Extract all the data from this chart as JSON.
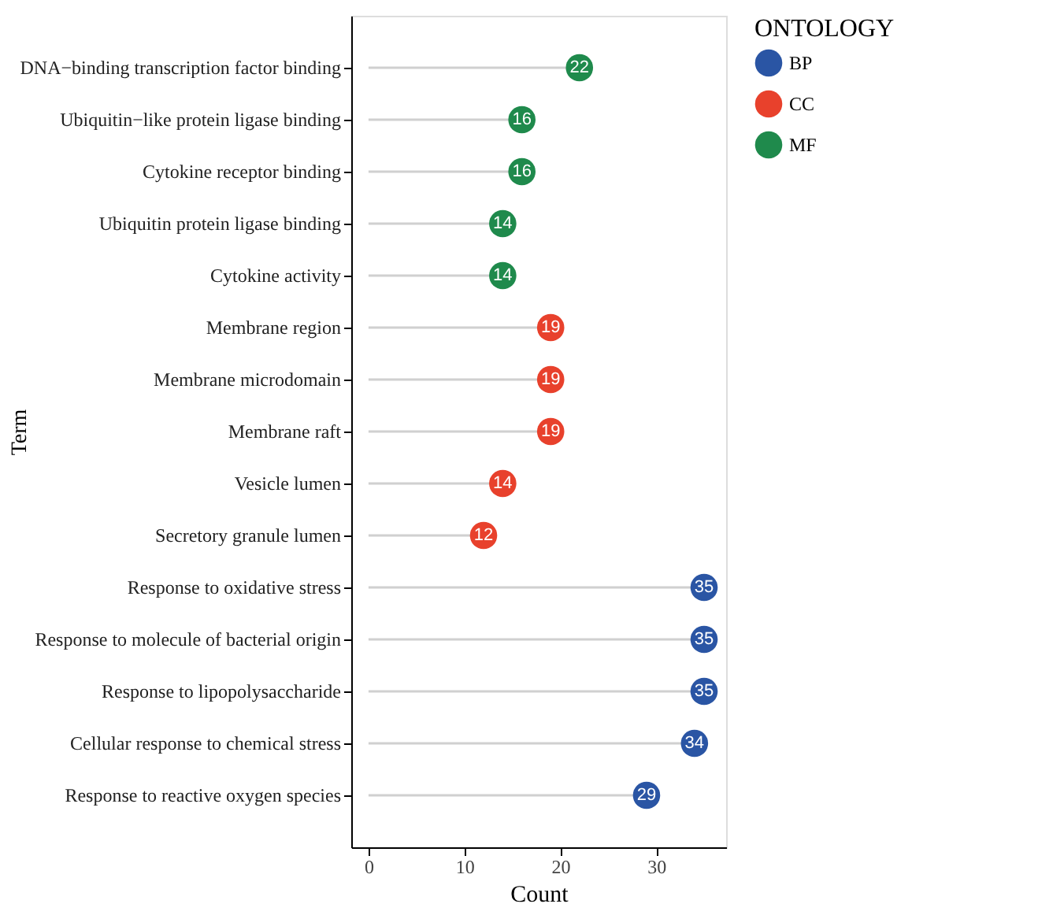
{
  "chart_data": {
    "type": "lollipop",
    "orientation": "horizontal",
    "xlabel": "Count",
    "ylabel": "Term",
    "legend_title": "ONTOLOGY",
    "legend": "right",
    "grid": false,
    "marker": "circle",
    "data_labels": true,
    "categories": [
      "DNA−binding transcription factor binding",
      "Ubiquitin−like protein ligase binding",
      "Cytokine receptor binding",
      "Ubiquitin protein ligase binding",
      "Cytokine activity",
      "Membrane region",
      "Membrane microdomain",
      "Membrane raft",
      "Vesicle lumen",
      "Secretory granule lumen",
      "Response to oxidative stress",
      "Response to molecule of bacterial origin",
      "Response to lipopolysaccharide",
      "Cellular response to chemical stress",
      "Response to reactive oxygen species"
    ],
    "xlim": [
      -1.8,
      37.3
    ],
    "xticks": [
      0,
      10,
      20,
      30
    ],
    "series": [
      {
        "name": "BP",
        "color": "#2a55a4",
        "values": [
          null,
          null,
          null,
          null,
          null,
          null,
          null,
          null,
          null,
          null,
          35,
          35,
          35,
          34,
          29
        ]
      },
      {
        "name": "CC",
        "color": "#e8412c",
        "values": [
          null,
          null,
          null,
          null,
          null,
          19,
          19,
          19,
          14,
          12,
          null,
          null,
          null,
          null,
          null
        ]
      },
      {
        "name": "MF",
        "color": "#1f8a4c",
        "values": [
          22,
          16,
          16,
          14,
          14,
          null,
          null,
          null,
          null,
          null,
          null,
          null,
          null,
          null,
          null
        ]
      }
    ]
  }
}
